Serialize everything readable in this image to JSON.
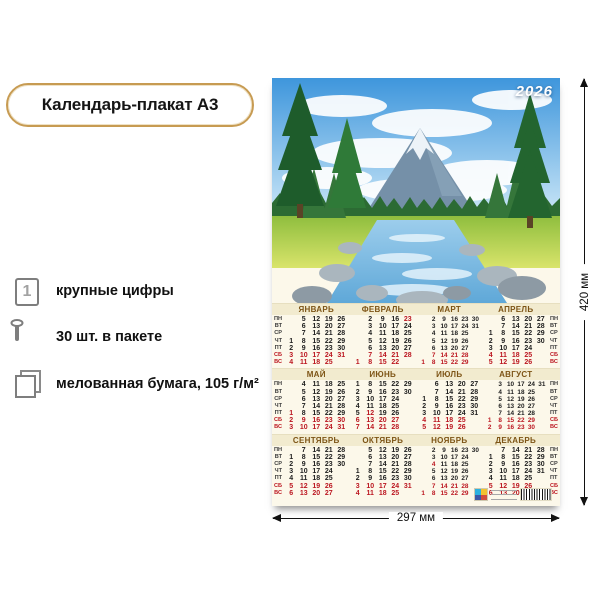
{
  "badge": {
    "label": "Календарь-плакат А3",
    "border_color": "#c79b52"
  },
  "features": [
    {
      "icon": "big-digit-icon",
      "label": "крупные цифры"
    },
    {
      "icon": "package-icon",
      "label": "30 шт. в пакете"
    },
    {
      "icon": "coated-paper-icon",
      "label": "мелованная бумага, 105 г/м²"
    }
  ],
  "poster": {
    "year": "2026",
    "colors": {
      "holiday_red": "#bb1620",
      "month_name": "#7d5415",
      "header_bg": "#f2ebcf",
      "calendar_bg": "#fcf8ea"
    },
    "weekday_labels": [
      "ПН",
      "ВТ",
      "СР",
      "ЧТ",
      "ПТ",
      "СБ",
      "ВС"
    ],
    "months": [
      {
        "name": "ЯНВАРЬ",
        "cols": 5,
        "holidays": [],
        "rows": [
          [
            "",
            "5",
            "12",
            "19",
            "26"
          ],
          [
            "",
            "6",
            "13",
            "20",
            "27"
          ],
          [
            "",
            "7",
            "14",
            "21",
            "28"
          ],
          [
            "1",
            "8",
            "15",
            "22",
            "29"
          ],
          [
            "2",
            "9",
            "16",
            "23",
            "30"
          ],
          [
            "3",
            "10",
            "17",
            "24",
            "31"
          ],
          [
            "4",
            "11",
            "18",
            "25",
            ""
          ]
        ]
      },
      {
        "name": "ФЕВРАЛЬ",
        "cols": 5,
        "holidays": [
          23
        ],
        "rows": [
          [
            "",
            "2",
            "9",
            "16",
            "23"
          ],
          [
            "",
            "3",
            "10",
            "17",
            "24"
          ],
          [
            "",
            "4",
            "11",
            "18",
            "25"
          ],
          [
            "",
            "5",
            "12",
            "19",
            "26"
          ],
          [
            "",
            "6",
            "13",
            "20",
            "27"
          ],
          [
            "",
            "7",
            "14",
            "21",
            "28"
          ],
          [
            "1",
            "8",
            "15",
            "22",
            ""
          ]
        ]
      },
      {
        "name": "МАРТ",
        "cols": 6,
        "holidays": [],
        "rows": [
          [
            "",
            "2",
            "9",
            "16",
            "23",
            "30"
          ],
          [
            "",
            "3",
            "10",
            "17",
            "24",
            "31"
          ],
          [
            "",
            "4",
            "11",
            "18",
            "25",
            ""
          ],
          [
            "",
            "5",
            "12",
            "19",
            "26",
            ""
          ],
          [
            "",
            "6",
            "13",
            "20",
            "27",
            ""
          ],
          [
            "",
            "7",
            "14",
            "21",
            "28",
            ""
          ],
          [
            "1",
            "8",
            "15",
            "22",
            "29",
            ""
          ]
        ]
      },
      {
        "name": "АПРЕЛЬ",
        "cols": 5,
        "holidays": [],
        "rows": [
          [
            "",
            "6",
            "13",
            "20",
            "27"
          ],
          [
            "",
            "7",
            "14",
            "21",
            "28"
          ],
          [
            "1",
            "8",
            "15",
            "22",
            "29"
          ],
          [
            "2",
            "9",
            "16",
            "23",
            "30"
          ],
          [
            "3",
            "10",
            "17",
            "24",
            ""
          ],
          [
            "4",
            "11",
            "18",
            "25",
            ""
          ],
          [
            "5",
            "12",
            "19",
            "26",
            ""
          ]
        ]
      },
      {
        "name": "МАЙ",
        "cols": 5,
        "holidays": [
          1
        ],
        "rows": [
          [
            "",
            "4",
            "11",
            "18",
            "25"
          ],
          [
            "",
            "5",
            "12",
            "19",
            "26"
          ],
          [
            "",
            "6",
            "13",
            "20",
            "27"
          ],
          [
            "",
            "7",
            "14",
            "21",
            "28"
          ],
          [
            "1",
            "8",
            "15",
            "22",
            "29"
          ],
          [
            "2",
            "9",
            "16",
            "23",
            "30"
          ],
          [
            "3",
            "10",
            "17",
            "24",
            "31"
          ]
        ]
      },
      {
        "name": "ИЮНЬ",
        "cols": 5,
        "holidays": [
          12
        ],
        "rows": [
          [
            "1",
            "8",
            "15",
            "22",
            "29"
          ],
          [
            "2",
            "9",
            "16",
            "23",
            "30"
          ],
          [
            "3",
            "10",
            "17",
            "24",
            ""
          ],
          [
            "4",
            "11",
            "18",
            "25",
            ""
          ],
          [
            "5",
            "12",
            "19",
            "26",
            ""
          ],
          [
            "6",
            "13",
            "20",
            "27",
            ""
          ],
          [
            "7",
            "14",
            "21",
            "28",
            ""
          ]
        ]
      },
      {
        "name": "ИЮЛЬ",
        "cols": 5,
        "holidays": [],
        "rows": [
          [
            "",
            "6",
            "13",
            "20",
            "27"
          ],
          [
            "",
            "7",
            "14",
            "21",
            "28"
          ],
          [
            "1",
            "8",
            "15",
            "22",
            "29"
          ],
          [
            "2",
            "9",
            "16",
            "23",
            "30"
          ],
          [
            "3",
            "10",
            "17",
            "24",
            "31"
          ],
          [
            "4",
            "11",
            "18",
            "25",
            ""
          ],
          [
            "5",
            "12",
            "19",
            "26",
            ""
          ]
        ]
      },
      {
        "name": "АВГУСТ",
        "cols": 6,
        "holidays": [],
        "rows": [
          [
            "",
            "3",
            "10",
            "17",
            "24",
            "31"
          ],
          [
            "",
            "4",
            "11",
            "18",
            "25",
            ""
          ],
          [
            "",
            "5",
            "12",
            "19",
            "26",
            ""
          ],
          [
            "",
            "6",
            "13",
            "20",
            "27",
            ""
          ],
          [
            "",
            "7",
            "14",
            "21",
            "28",
            ""
          ],
          [
            "1",
            "8",
            "15",
            "22",
            "29",
            ""
          ],
          [
            "2",
            "9",
            "16",
            "23",
            "30",
            ""
          ]
        ]
      },
      {
        "name": "СЕНТЯБРЬ",
        "cols": 5,
        "holidays": [],
        "rows": [
          [
            "",
            "7",
            "14",
            "21",
            "28"
          ],
          [
            "1",
            "8",
            "15",
            "22",
            "29"
          ],
          [
            "2",
            "9",
            "16",
            "23",
            "30"
          ],
          [
            "3",
            "10",
            "17",
            "24",
            ""
          ],
          [
            "4",
            "11",
            "18",
            "25",
            ""
          ],
          [
            "5",
            "12",
            "19",
            "26",
            ""
          ],
          [
            "6",
            "13",
            "20",
            "27",
            ""
          ]
        ]
      },
      {
        "name": "ОКТЯБРЬ",
        "cols": 5,
        "holidays": [],
        "rows": [
          [
            "",
            "5",
            "12",
            "19",
            "26"
          ],
          [
            "",
            "6",
            "13",
            "20",
            "27"
          ],
          [
            "",
            "7",
            "14",
            "21",
            "28"
          ],
          [
            "1",
            "8",
            "15",
            "22",
            "29"
          ],
          [
            "2",
            "9",
            "16",
            "23",
            "30"
          ],
          [
            "3",
            "10",
            "17",
            "24",
            "31"
          ],
          [
            "4",
            "11",
            "18",
            "25",
            ""
          ]
        ]
      },
      {
        "name": "НОЯБРЬ",
        "cols": 6,
        "holidays": [
          4
        ],
        "rows": [
          [
            "",
            "2",
            "9",
            "16",
            "23",
            "30"
          ],
          [
            "",
            "3",
            "10",
            "17",
            "24",
            ""
          ],
          [
            "",
            "4",
            "11",
            "18",
            "25",
            ""
          ],
          [
            "",
            "5",
            "12",
            "19",
            "26",
            ""
          ],
          [
            "",
            "6",
            "13",
            "20",
            "27",
            ""
          ],
          [
            "",
            "7",
            "14",
            "21",
            "28",
            ""
          ],
          [
            "1",
            "8",
            "15",
            "22",
            "29",
            ""
          ]
        ]
      },
      {
        "name": "ДЕКАБРЬ",
        "cols": 5,
        "holidays": [],
        "rows": [
          [
            "",
            "7",
            "14",
            "21",
            "28"
          ],
          [
            "1",
            "8",
            "15",
            "22",
            "29"
          ],
          [
            "2",
            "9",
            "16",
            "23",
            "30"
          ],
          [
            "3",
            "10",
            "17",
            "24",
            "31"
          ],
          [
            "4",
            "11",
            "18",
            "25",
            ""
          ],
          [
            "5",
            "12",
            "19",
            "26",
            ""
          ],
          [
            "6",
            "13",
            "20",
            "27",
            ""
          ]
        ]
      }
    ]
  },
  "dimensions": {
    "height_label": "420 мм",
    "width_label": "297 мм"
  }
}
